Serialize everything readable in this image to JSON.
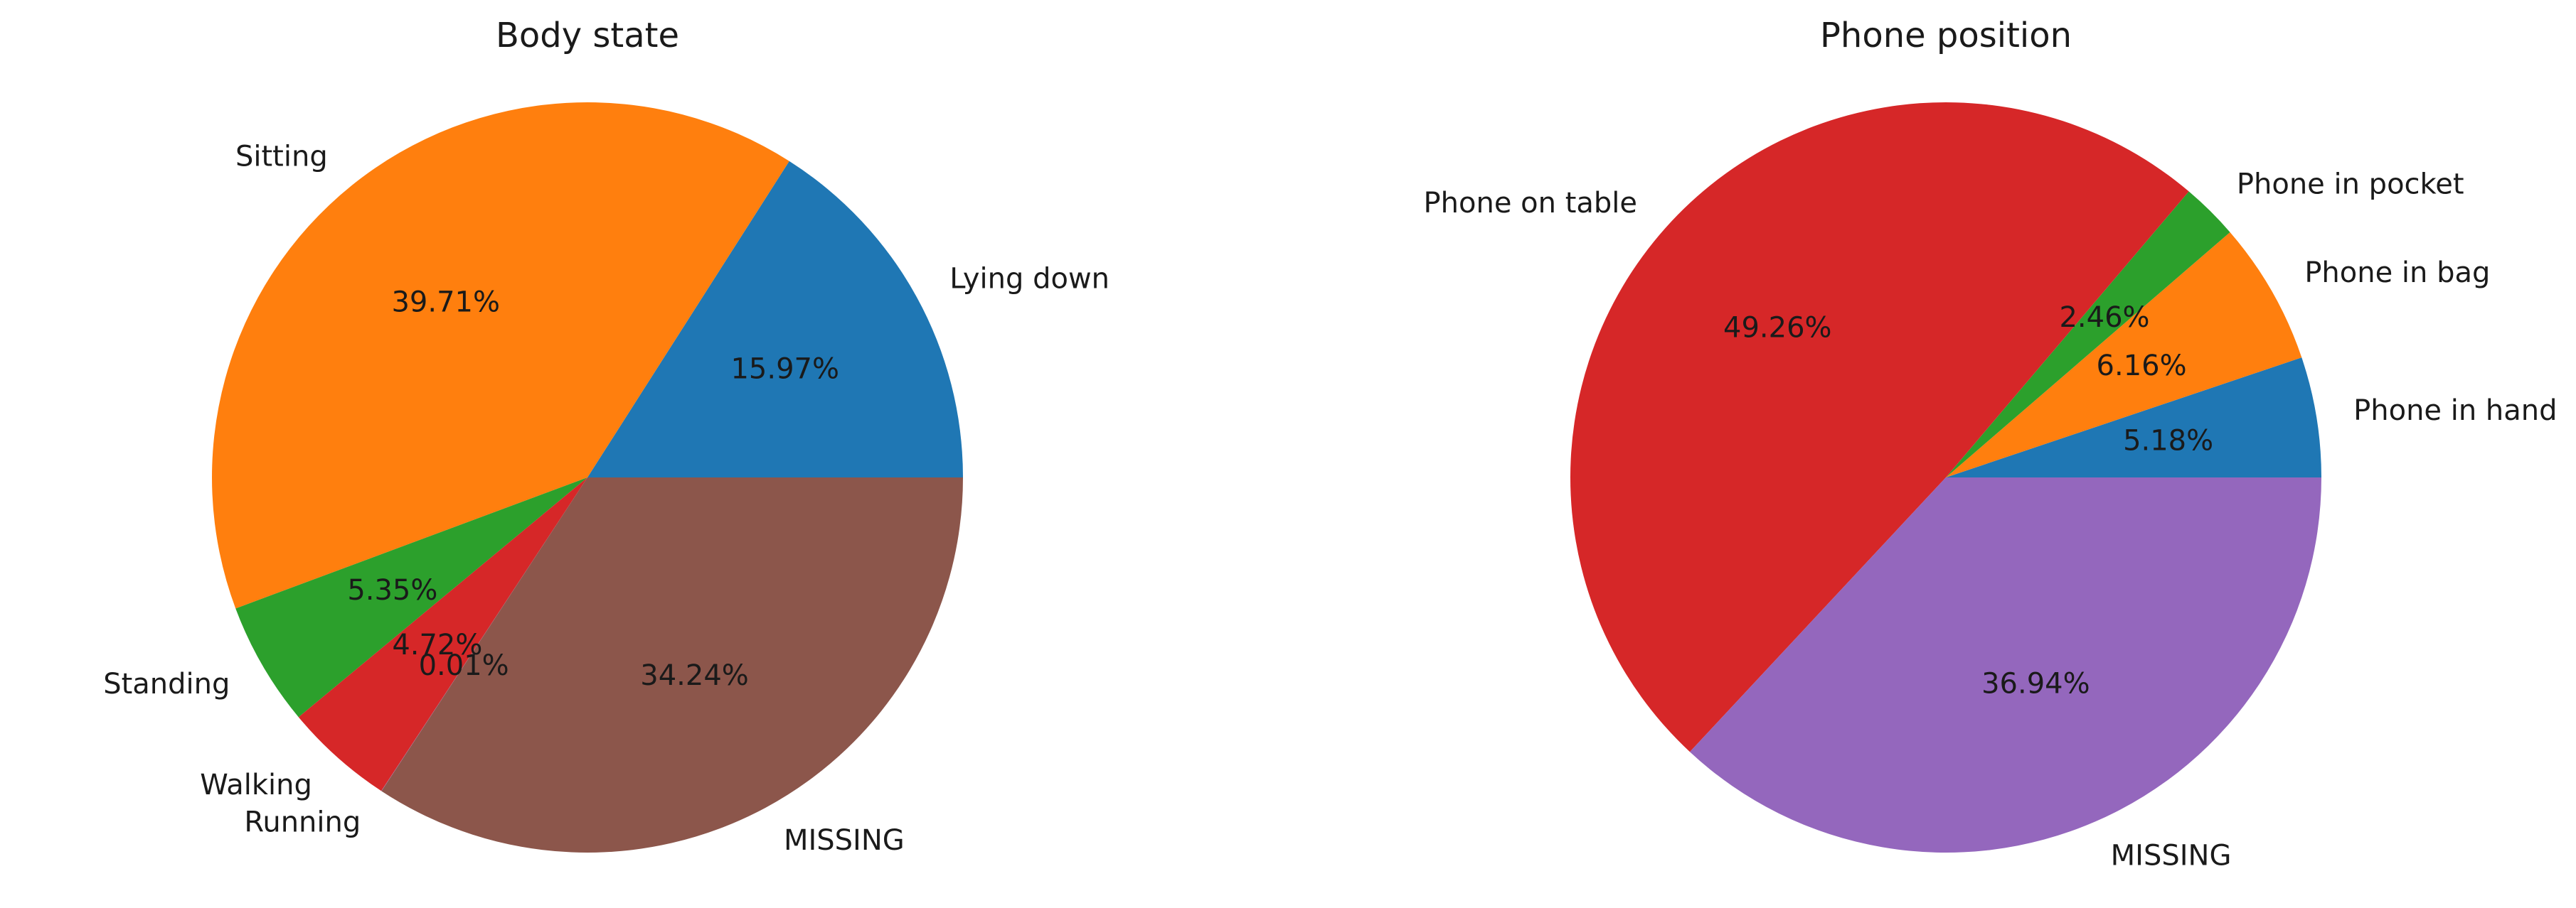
{
  "chart_data": [
    {
      "type": "pie",
      "title": "Body state",
      "start_angle_deg": 0,
      "direction": "counterclockwise",
      "slices": [
        {
          "label": "Lying down",
          "value": 15.97,
          "pct_label": "15.97%",
          "color": "#1f77b4"
        },
        {
          "label": "Sitting",
          "value": 39.71,
          "pct_label": "39.71%",
          "color": "#ff7f0e"
        },
        {
          "label": "Standing",
          "value": 5.35,
          "pct_label": "5.35%",
          "color": "#2ca02c"
        },
        {
          "label": "Walking",
          "value": 4.72,
          "pct_label": "4.72%",
          "color": "#d62728"
        },
        {
          "label": "Running",
          "value": 0.01,
          "pct_label": "0.01%",
          "color": "#9467bd"
        },
        {
          "label": "MISSING",
          "value": 34.24,
          "pct_label": "34.24%",
          "color": "#8c564b"
        }
      ]
    },
    {
      "type": "pie",
      "title": "Phone position",
      "start_angle_deg": 0,
      "direction": "counterclockwise",
      "slices": [
        {
          "label": "Phone in hand",
          "value": 5.18,
          "pct_label": "5.18%",
          "color": "#1f77b4"
        },
        {
          "label": "Phone in bag",
          "value": 6.16,
          "pct_label": "6.16%",
          "color": "#ff7f0e"
        },
        {
          "label": "Phone in pocket",
          "value": 2.46,
          "pct_label": "2.46%",
          "color": "#2ca02c"
        },
        {
          "label": "Phone on table",
          "value": 49.26,
          "pct_label": "49.26%",
          "color": "#d62728"
        },
        {
          "label": "MISSING",
          "value": 36.94,
          "pct_label": "36.94%",
          "color": "#9467bd"
        }
      ]
    }
  ]
}
